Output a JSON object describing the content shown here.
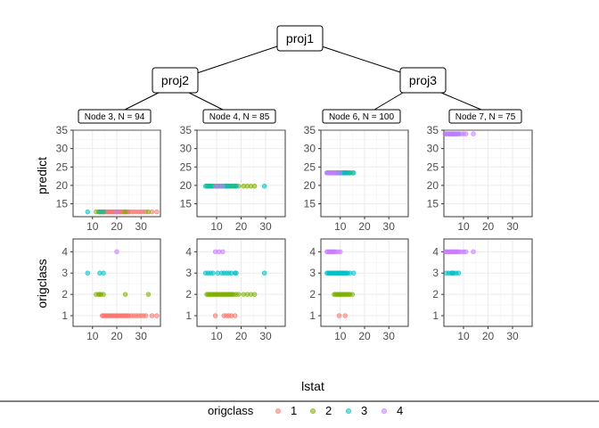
{
  "tree": {
    "root": "proj1",
    "left": "proj2",
    "right": "proj3",
    "leaves": [
      "Node 3, N = 94",
      "Node 4, N = 85",
      "Node 6, N = 100",
      "Node 7, N = 75"
    ]
  },
  "axis": {
    "xlabel": "lstat",
    "ylabel_top": "predict",
    "ylabel_bottom": "origclass",
    "x_ticks": [
      "10",
      "20",
      "30"
    ],
    "y_ticks_top": [
      "15",
      "20",
      "25",
      "30",
      "35"
    ],
    "y_ticks_bottom": [
      "1",
      "2",
      "3",
      "4"
    ]
  },
  "legend": {
    "title": "origclass",
    "items": [
      {
        "label": "1",
        "color": "#F8766D"
      },
      {
        "label": "2",
        "color": "#7CAE00"
      },
      {
        "label": "3",
        "color": "#00BFC4"
      },
      {
        "label": "4",
        "color": "#C77CFF"
      }
    ]
  },
  "chart_data": {
    "type": "scatter",
    "xlim": [
      2,
      38
    ],
    "ylim_predict": [
      11.5,
      35
    ],
    "ylim_origclass": [
      0.5,
      4.6
    ],
    "grid": true,
    "legend_position": "bottom",
    "panels": [
      {
        "node": "Node 3, N = 94",
        "predict": 12.8,
        "points": [
          {
            "x": 14.0,
            "c": 1
          },
          {
            "x": 14.5,
            "c": 1
          },
          {
            "x": 15.0,
            "c": 1
          },
          {
            "x": 15.5,
            "c": 1
          },
          {
            "x": 16.0,
            "c": 1
          },
          {
            "x": 16.5,
            "c": 1
          },
          {
            "x": 17.0,
            "c": 1
          },
          {
            "x": 17.5,
            "c": 1
          },
          {
            "x": 18.0,
            "c": 1
          },
          {
            "x": 18.5,
            "c": 1
          },
          {
            "x": 19.0,
            "c": 1
          },
          {
            "x": 19.5,
            "c": 1
          },
          {
            "x": 20.0,
            "c": 1
          },
          {
            "x": 20.5,
            "c": 1
          },
          {
            "x": 21.0,
            "c": 1
          },
          {
            "x": 21.5,
            "c": 1
          },
          {
            "x": 22.0,
            "c": 1
          },
          {
            "x": 22.5,
            "c": 1
          },
          {
            "x": 23.0,
            "c": 1
          },
          {
            "x": 23.5,
            "c": 1
          },
          {
            "x": 24.0,
            "c": 1
          },
          {
            "x": 24.5,
            "c": 1
          },
          {
            "x": 25.0,
            "c": 1
          },
          {
            "x": 26.0,
            "c": 1
          },
          {
            "x": 27.0,
            "c": 1
          },
          {
            "x": 28.0,
            "c": 1
          },
          {
            "x": 29.0,
            "c": 1
          },
          {
            "x": 30.0,
            "c": 1
          },
          {
            "x": 31.0,
            "c": 1
          },
          {
            "x": 32.0,
            "c": 1
          },
          {
            "x": 34.5,
            "c": 1
          },
          {
            "x": 36.5,
            "c": 1
          },
          {
            "x": 11.5,
            "c": 2
          },
          {
            "x": 12.5,
            "c": 2
          },
          {
            "x": 13.0,
            "c": 2
          },
          {
            "x": 13.5,
            "c": 2
          },
          {
            "x": 14.5,
            "c": 2
          },
          {
            "x": 23.5,
            "c": 2
          },
          {
            "x": 33.0,
            "c": 2
          },
          {
            "x": 8.0,
            "c": 3
          },
          {
            "x": 13.0,
            "c": 3
          },
          {
            "x": 14.5,
            "c": 3
          },
          {
            "x": 20.0,
            "c": 4
          }
        ]
      },
      {
        "node": "Node 4, N = 85",
        "predict": 19.8,
        "points": [
          {
            "x": 9.5,
            "c": 1
          },
          {
            "x": 13.0,
            "c": 1
          },
          {
            "x": 14.0,
            "c": 1
          },
          {
            "x": 15.0,
            "c": 1
          },
          {
            "x": 16.0,
            "c": 1
          },
          {
            "x": 17.5,
            "c": 1
          },
          {
            "x": 6.0,
            "c": 2
          },
          {
            "x": 6.5,
            "c": 2
          },
          {
            "x": 7.0,
            "c": 2
          },
          {
            "x": 7.5,
            "c": 2
          },
          {
            "x": 8.0,
            "c": 2
          },
          {
            "x": 8.5,
            "c": 2
          },
          {
            "x": 9.0,
            "c": 2
          },
          {
            "x": 9.5,
            "c": 2
          },
          {
            "x": 10.0,
            "c": 2
          },
          {
            "x": 10.5,
            "c": 2
          },
          {
            "x": 11.0,
            "c": 2
          },
          {
            "x": 11.5,
            "c": 2
          },
          {
            "x": 12.0,
            "c": 2
          },
          {
            "x": 12.5,
            "c": 2
          },
          {
            "x": 13.0,
            "c": 2
          },
          {
            "x": 13.5,
            "c": 2
          },
          {
            "x": 14.0,
            "c": 2
          },
          {
            "x": 14.5,
            "c": 2
          },
          {
            "x": 15.0,
            "c": 2
          },
          {
            "x": 15.5,
            "c": 2
          },
          {
            "x": 16.0,
            "c": 2
          },
          {
            "x": 16.5,
            "c": 2
          },
          {
            "x": 17.0,
            "c": 2
          },
          {
            "x": 18.0,
            "c": 2
          },
          {
            "x": 19.0,
            "c": 2
          },
          {
            "x": 21.0,
            "c": 2
          },
          {
            "x": 22.5,
            "c": 2
          },
          {
            "x": 24.0,
            "c": 2
          },
          {
            "x": 25.5,
            "c": 2
          },
          {
            "x": 5.5,
            "c": 3
          },
          {
            "x": 6.5,
            "c": 3
          },
          {
            "x": 7.5,
            "c": 3
          },
          {
            "x": 8.5,
            "c": 3
          },
          {
            "x": 10.5,
            "c": 3
          },
          {
            "x": 12.0,
            "c": 3
          },
          {
            "x": 13.0,
            "c": 3
          },
          {
            "x": 14.0,
            "c": 3
          },
          {
            "x": 15.0,
            "c": 3
          },
          {
            "x": 16.0,
            "c": 3
          },
          {
            "x": 17.5,
            "c": 3
          },
          {
            "x": 18.0,
            "c": 3
          },
          {
            "x": 29.5,
            "c": 3
          },
          {
            "x": 9.5,
            "c": 4
          },
          {
            "x": 11.0,
            "c": 4
          },
          {
            "x": 12.5,
            "c": 4
          }
        ]
      },
      {
        "node": "Node 6, N = 100",
        "predict": 23.4,
        "points": [
          {
            "x": 9.5,
            "c": 1
          },
          {
            "x": 12.0,
            "c": 1
          },
          {
            "x": 7.5,
            "c": 2
          },
          {
            "x": 8.0,
            "c": 2
          },
          {
            "x": 8.5,
            "c": 2
          },
          {
            "x": 9.0,
            "c": 2
          },
          {
            "x": 9.5,
            "c": 2
          },
          {
            "x": 10.0,
            "c": 2
          },
          {
            "x": 10.5,
            "c": 2
          },
          {
            "x": 11.0,
            "c": 2
          },
          {
            "x": 11.5,
            "c": 2
          },
          {
            "x": 12.0,
            "c": 2
          },
          {
            "x": 12.5,
            "c": 2
          },
          {
            "x": 13.0,
            "c": 2
          },
          {
            "x": 13.5,
            "c": 2
          },
          {
            "x": 14.0,
            "c": 2
          },
          {
            "x": 15.0,
            "c": 2
          },
          {
            "x": 4.5,
            "c": 3
          },
          {
            "x": 5.0,
            "c": 3
          },
          {
            "x": 5.5,
            "c": 3
          },
          {
            "x": 6.0,
            "c": 3
          },
          {
            "x": 6.5,
            "c": 3
          },
          {
            "x": 7.0,
            "c": 3
          },
          {
            "x": 7.5,
            "c": 3
          },
          {
            "x": 8.0,
            "c": 3
          },
          {
            "x": 8.5,
            "c": 3
          },
          {
            "x": 9.0,
            "c": 3
          },
          {
            "x": 9.5,
            "c": 3
          },
          {
            "x": 10.0,
            "c": 3
          },
          {
            "x": 10.5,
            "c": 3
          },
          {
            "x": 11.0,
            "c": 3
          },
          {
            "x": 11.5,
            "c": 3
          },
          {
            "x": 12.0,
            "c": 3
          },
          {
            "x": 12.5,
            "c": 3
          },
          {
            "x": 13.0,
            "c": 3
          },
          {
            "x": 14.0,
            "c": 3
          },
          {
            "x": 15.5,
            "c": 3
          },
          {
            "x": 4.5,
            "c": 4
          },
          {
            "x": 5.0,
            "c": 4
          },
          {
            "x": 5.5,
            "c": 4
          },
          {
            "x": 6.0,
            "c": 4
          },
          {
            "x": 6.5,
            "c": 4
          },
          {
            "x": 7.0,
            "c": 4
          },
          {
            "x": 7.5,
            "c": 4
          },
          {
            "x": 8.0,
            "c": 4
          },
          {
            "x": 9.0,
            "c": 4
          },
          {
            "x": 10.0,
            "c": 4
          }
        ]
      },
      {
        "node": "Node 7, N = 75",
        "predict": 34.0,
        "points": [
          {
            "x": 3.0,
            "c": 3
          },
          {
            "x": 4.0,
            "c": 3
          },
          {
            "x": 5.0,
            "c": 3
          },
          {
            "x": 5.5,
            "c": 3
          },
          {
            "x": 6.0,
            "c": 3
          },
          {
            "x": 7.0,
            "c": 3
          },
          {
            "x": 8.0,
            "c": 3
          },
          {
            "x": 2.5,
            "c": 4
          },
          {
            "x": 3.0,
            "c": 4
          },
          {
            "x": 3.5,
            "c": 4
          },
          {
            "x": 4.0,
            "c": 4
          },
          {
            "x": 4.5,
            "c": 4
          },
          {
            "x": 5.0,
            "c": 4
          },
          {
            "x": 5.5,
            "c": 4
          },
          {
            "x": 6.0,
            "c": 4
          },
          {
            "x": 6.5,
            "c": 4
          },
          {
            "x": 7.0,
            "c": 4
          },
          {
            "x": 7.5,
            "c": 4
          },
          {
            "x": 8.0,
            "c": 4
          },
          {
            "x": 9.0,
            "c": 4
          },
          {
            "x": 10.0,
            "c": 4
          },
          {
            "x": 11.0,
            "c": 4
          },
          {
            "x": 14.0,
            "c": 4
          }
        ]
      }
    ]
  }
}
